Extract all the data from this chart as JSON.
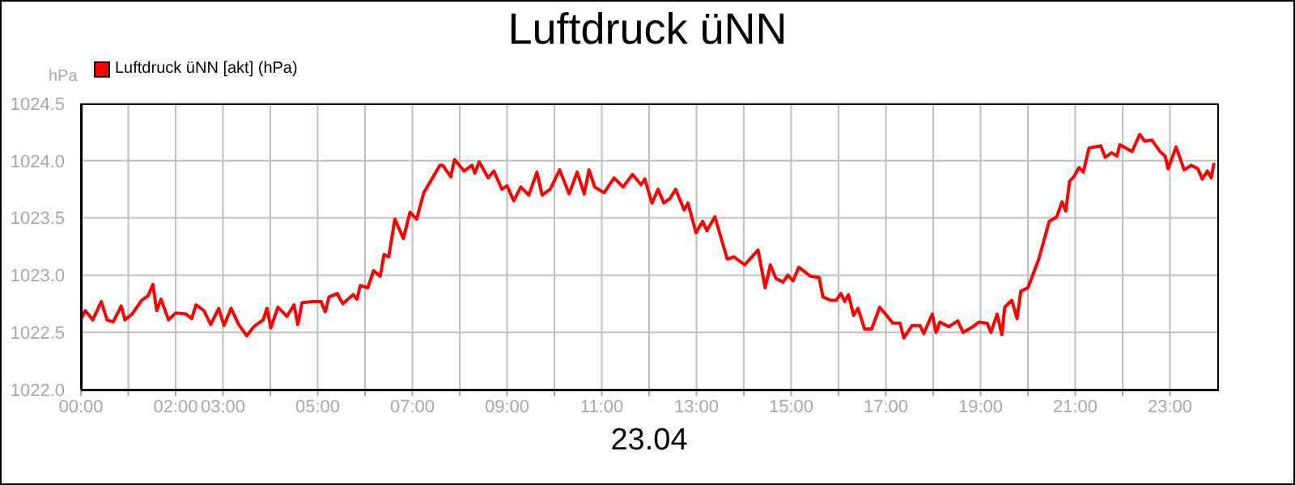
{
  "chart_data": {
    "type": "line",
    "title": "Luftdruck üNN",
    "xlabel": "23.04",
    "ylabel": "hPa",
    "legend": "top left",
    "grid": true,
    "xlim": [
      0,
      24
    ],
    "xticks": [
      {
        "value": 0,
        "label": "00:00"
      },
      {
        "value": 1,
        "label": null
      },
      {
        "value": 2,
        "label": "02:00"
      },
      {
        "value": 3,
        "label": "03:00"
      },
      {
        "value": 4,
        "label": null
      },
      {
        "value": 5,
        "label": "05:00"
      },
      {
        "value": 6,
        "label": null
      },
      {
        "value": 7,
        "label": "07:00"
      },
      {
        "value": 8,
        "label": null
      },
      {
        "value": 9,
        "label": "09:00"
      },
      {
        "value": 10,
        "label": null
      },
      {
        "value": 11,
        "label": "11:00"
      },
      {
        "value": 12,
        "label": null
      },
      {
        "value": 13,
        "label": "13:00"
      },
      {
        "value": 14,
        "label": null
      },
      {
        "value": 15,
        "label": "15:00"
      },
      {
        "value": 16,
        "label": null
      },
      {
        "value": 17,
        "label": "17:00"
      },
      {
        "value": 18,
        "label": null
      },
      {
        "value": 19,
        "label": "19:00"
      },
      {
        "value": 20,
        "label": null
      },
      {
        "value": 21,
        "label": "21:00"
      },
      {
        "value": 22,
        "label": null
      },
      {
        "value": 23,
        "label": "23:00"
      }
    ],
    "ylim": [
      1022,
      1024.5
    ],
    "yticks": [
      {
        "value": 1022,
        "label": "1022.0"
      },
      1022.5,
      {
        "value": 1023,
        "label": "1023.0"
      },
      1023.5,
      {
        "value": 1024,
        "label": "1024.0"
      },
      1024.5
    ],
    "x": [
      0,
      0.09,
      0.25,
      0.43,
      0.55,
      0.68,
      0.85,
      0.93,
      1.08,
      1.28,
      1.42,
      1.52,
      1.6,
      1.69,
      1.85,
      2.0,
      2.22,
      2.34,
      2.43,
      2.6,
      2.74,
      2.91,
      3.02,
      3.17,
      3.33,
      3.5,
      3.65,
      3.85,
      3.93,
      4.01,
      4.16,
      4.35,
      4.5,
      4.58,
      4.67,
      4.9,
      5.07,
      5.16,
      5.24,
      5.41,
      5.53,
      5.75,
      5.83,
      5.9,
      6.06,
      6.18,
      6.32,
      6.4,
      6.5,
      6.63,
      6.81,
      6.95,
      7.09,
      7.24,
      7.41,
      7.58,
      7.64,
      7.81,
      7.89,
      8.09,
      8.26,
      8.32,
      8.41,
      8.6,
      8.72,
      8.89,
      9.0,
      9.14,
      9.29,
      9.46,
      9.63,
      9.74,
      9.91,
      10.11,
      10.31,
      10.48,
      10.63,
      10.73,
      10.85,
      11.05,
      11.26,
      11.45,
      11.65,
      11.83,
      11.91,
      12.06,
      12.19,
      12.31,
      12.44,
      12.56,
      12.74,
      12.82,
      12.99,
      13.13,
      13.22,
      13.39,
      13.65,
      13.79,
      14.02,
      14.3,
      14.45,
      14.56,
      14.68,
      14.83,
      14.93,
      15.04,
      15.16,
      15.41,
      15.59,
      15.67,
      15.84,
      15.95,
      16.05,
      16.13,
      16.21,
      16.32,
      16.41,
      16.55,
      16.7,
      16.87,
      17.15,
      17.3,
      17.38,
      17.55,
      17.72,
      17.8,
      17.98,
      18.06,
      18.14,
      18.33,
      18.52,
      18.63,
      18.8,
      18.97,
      19.14,
      19.22,
      19.35,
      19.45,
      19.51,
      19.66,
      19.77,
      19.85,
      20.0,
      20.23,
      20.45,
      20.61,
      20.72,
      20.8,
      20.88,
      20.97,
      21.08,
      21.17,
      21.29,
      21.54,
      21.63,
      21.77,
      21.88,
      21.94,
      22.2,
      22.36,
      22.47,
      22.62,
      22.79,
      22.9,
      22.96,
      23.13,
      23.3,
      23.45,
      23.59,
      23.68,
      23.79,
      23.87,
      23.93
    ],
    "series": [
      {
        "name": "Luftdruck üNN [akt] (hPa)",
        "color": "#ff0000",
        "values": [
          1022.62,
          1022.69,
          1022.61,
          1022.77,
          1022.61,
          1022.59,
          1022.73,
          1022.61,
          1022.66,
          1022.78,
          1022.82,
          1022.92,
          1022.69,
          1022.79,
          1022.61,
          1022.67,
          1022.66,
          1022.62,
          1022.74,
          1022.69,
          1022.57,
          1022.71,
          1022.56,
          1022.71,
          1022.57,
          1022.47,
          1022.55,
          1022.61,
          1022.71,
          1022.54,
          1022.72,
          1022.64,
          1022.74,
          1022.57,
          1022.76,
          1022.77,
          1022.77,
          1022.68,
          1022.81,
          1022.84,
          1022.75,
          1022.83,
          1022.79,
          1022.91,
          1022.89,
          1023.04,
          1022.99,
          1023.18,
          1023.16,
          1023.49,
          1023.32,
          1023.55,
          1023.49,
          1023.72,
          1023.84,
          1023.96,
          1023.96,
          1023.86,
          1024.01,
          1023.91,
          1023.96,
          1023.89,
          1023.99,
          1023.85,
          1023.91,
          1023.75,
          1023.78,
          1023.65,
          1023.77,
          1023.7,
          1023.9,
          1023.7,
          1023.75,
          1023.92,
          1023.71,
          1023.9,
          1023.71,
          1023.92,
          1023.77,
          1023.72,
          1023.85,
          1023.77,
          1023.88,
          1023.79,
          1023.84,
          1023.63,
          1023.75,
          1023.63,
          1023.67,
          1023.75,
          1023.57,
          1023.63,
          1023.37,
          1023.47,
          1023.39,
          1023.51,
          1023.14,
          1023.16,
          1023.09,
          1023.22,
          1022.89,
          1023.09,
          1022.97,
          1022.94,
          1023.0,
          1022.95,
          1023.07,
          1022.99,
          1022.98,
          1022.81,
          1022.78,
          1022.78,
          1022.84,
          1022.77,
          1022.83,
          1022.65,
          1022.71,
          1022.53,
          1022.53,
          1022.72,
          1022.58,
          1022.58,
          1022.45,
          1022.56,
          1022.56,
          1022.49,
          1022.66,
          1022.5,
          1022.59,
          1022.55,
          1022.6,
          1022.5,
          1022.54,
          1022.59,
          1022.58,
          1022.5,
          1022.66,
          1022.48,
          1022.72,
          1022.78,
          1022.62,
          1022.86,
          1022.89,
          1023.14,
          1023.47,
          1023.51,
          1023.64,
          1023.56,
          1023.82,
          1023.86,
          1023.94,
          1023.9,
          1024.11,
          1024.13,
          1024.03,
          1024.07,
          1024.04,
          1024.14,
          1024.08,
          1024.23,
          1024.17,
          1024.18,
          1024.08,
          1024.04,
          1023.93,
          1024.12,
          1023.92,
          1023.96,
          1023.93,
          1023.84,
          1023.91,
          1023.85,
          1023.98
        ]
      }
    ]
  }
}
